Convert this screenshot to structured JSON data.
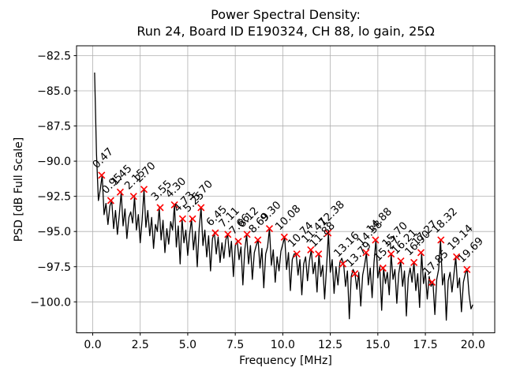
{
  "figure": {
    "background": "#ffffff"
  },
  "chart_data": {
    "type": "line",
    "title_line1": "Power Spectral Density:",
    "title_line2": "Run 24, Board ID E190324, CH 88, lo gain, 25Ω",
    "title": "Power Spectral Density:\nRun 24, Board ID E190324, CH 88, lo gain, 25Ω",
    "xlabel": "Frequency [MHz]",
    "ylabel": "PSD [dB Full Scale]",
    "xlim": [
      -0.85,
      21.15
    ],
    "ylim": [
      -102.2,
      -81.8
    ],
    "grid": true,
    "grid_color": "#b0b0b0",
    "line_color": "#000000",
    "marker_color": "#ff0000",
    "x_ticks": [
      0.0,
      2.5,
      5.0,
      7.5,
      10.0,
      12.5,
      15.0,
      17.5,
      20.0
    ],
    "x_tick_labels": [
      "0.0",
      "2.5",
      "5.0",
      "7.5",
      "10.0",
      "12.5",
      "15.0",
      "17.5",
      "20.0"
    ],
    "y_ticks": [
      -82.5,
      -85.0,
      -87.5,
      -90.0,
      -92.5,
      -95.0,
      -97.5,
      -100.0
    ],
    "y_tick_labels": [
      "−82.5",
      "−85.0",
      "−87.5",
      "−90.0",
      "−92.5",
      "−95.0",
      "−97.5",
      "−100.0"
    ],
    "series": [
      {
        "name": "psd-trace",
        "f_start": 0.1,
        "f_step": 0.1,
        "values": [
          -83.7,
          -89.5,
          -92.8,
          -92.0,
          -91.0,
          -93.8,
          -93.0,
          -94.5,
          -93.2,
          -92.8,
          -94.8,
          -93.5,
          -95.2,
          -93.8,
          -92.2,
          -94.6,
          -93.4,
          -95.5,
          -94.0,
          -93.6,
          -94.4,
          -92.5,
          -94.9,
          -93.8,
          -95.8,
          -94.2,
          -92.0,
          -94.7,
          -93.5,
          -95.3,
          -94.0,
          -96.2,
          -94.5,
          -95.0,
          -93.3,
          -95.6,
          -94.2,
          -96.5,
          -94.8,
          -95.9,
          -94.3,
          -94.9,
          -93.1,
          -96.1,
          -94.6,
          -97.3,
          -94.1,
          -95.8,
          -94.9,
          -96.7,
          -95.2,
          -94.1,
          -96.3,
          -95.0,
          -97.5,
          -94.8,
          -93.3,
          -96.0,
          -94.9,
          -96.8,
          -95.3,
          -97.8,
          -95.5,
          -95.1,
          -96.6,
          -95.4,
          -97.2,
          -95.8,
          -96.9,
          -95.6,
          -95.2,
          -96.8,
          -95.7,
          -98.2,
          -96.0,
          -95.7,
          -97.0,
          -96.1,
          -98.8,
          -96.3,
          -95.2,
          -97.3,
          -96.0,
          -98.4,
          -96.5,
          -96.0,
          -95.6,
          -97.6,
          -96.2,
          -99.0,
          -96.6,
          -96.1,
          -94.8,
          -97.4,
          -96.3,
          -98.6,
          -96.8,
          -97.8,
          -96.4,
          -95.9,
          -95.4,
          -97.7,
          -96.5,
          -99.2,
          -97.0,
          -96.6,
          -96.6,
          -98.1,
          -97.0,
          -99.5,
          -97.3,
          -96.8,
          -98.5,
          -97.1,
          -96.3,
          -98.0,
          -97.2,
          -99.3,
          -96.6,
          -98.2,
          -97.4,
          -99.8,
          -97.6,
          -95.1,
          -97.9,
          -97.0,
          -99.4,
          -97.5,
          -98.8,
          -97.2,
          -96.9,
          -97.3,
          -98.9,
          -97.8,
          -101.2,
          -98.2,
          -97.7,
          -98.0,
          -99.1,
          -97.9,
          -100.3,
          -98.1,
          -97.4,
          -96.5,
          -98.8,
          -97.6,
          -99.7,
          -97.2,
          -95.6,
          -98.3,
          -97.5,
          -100.6,
          -97.6,
          -98.7,
          -97.9,
          -99.5,
          -96.6,
          -98.4,
          -97.7,
          -100.1,
          -98.0,
          -97.1,
          -98.9,
          -97.8,
          -101.0,
          -98.3,
          -97.6,
          -98.6,
          -97.2,
          -99.2,
          -98.0,
          -100.4,
          -96.5,
          -98.7,
          -97.9,
          -99.8,
          -98.2,
          -98.9,
          -98.6,
          -100.9,
          -98.4,
          -97.7,
          -95.6,
          -98.8,
          -98.0,
          -101.3,
          -98.5,
          -97.9,
          -99.3,
          -98.1,
          -96.8,
          -99.0,
          -98.3,
          -100.7,
          -98.6,
          -98.0,
          -97.7,
          -99.5,
          -100.5,
          -100.2
        ]
      }
    ],
    "peak_markers": [
      {
        "f": 0.47,
        "db": -91.0,
        "label": "0.47"
      },
      {
        "f": 0.95,
        "db": -92.8,
        "label": "0.95"
      },
      {
        "f": 1.45,
        "db": -92.2,
        "label": "1.45"
      },
      {
        "f": 2.15,
        "db": -92.5,
        "label": "2.15"
      },
      {
        "f": 2.7,
        "db": -92.0,
        "label": "2.70"
      },
      {
        "f": 3.55,
        "db": -93.3,
        "label": "3.55"
      },
      {
        "f": 4.3,
        "db": -93.1,
        "label": "4.30"
      },
      {
        "f": 4.73,
        "db": -94.1,
        "label": "4.73"
      },
      {
        "f": 5.25,
        "db": -94.1,
        "label": "5.25"
      },
      {
        "f": 5.7,
        "db": -93.3,
        "label": "5.70"
      },
      {
        "f": 6.45,
        "db": -95.1,
        "label": "6.45"
      },
      {
        "f": 7.11,
        "db": -95.2,
        "label": "7.11"
      },
      {
        "f": 7.66,
        "db": -95.7,
        "label": "7.66"
      },
      {
        "f": 8.12,
        "db": -95.2,
        "label": "8.12"
      },
      {
        "f": 8.69,
        "db": -95.6,
        "label": "8.69"
      },
      {
        "f": 9.3,
        "db": -94.8,
        "label": "9.30"
      },
      {
        "f": 10.08,
        "db": -95.4,
        "label": "10.08"
      },
      {
        "f": 10.74,
        "db": -96.6,
        "label": "10.74"
      },
      {
        "f": 11.47,
        "db": -96.3,
        "label": "11.47"
      },
      {
        "f": 11.88,
        "db": -96.6,
        "label": "11.88"
      },
      {
        "f": 12.38,
        "db": -95.1,
        "label": "12.38"
      },
      {
        "f": 13.16,
        "db": -97.3,
        "label": "13.16"
      },
      {
        "f": 13.79,
        "db": -98.0,
        "label": "13.79"
      },
      {
        "f": 14.38,
        "db": -96.5,
        "label": "14.38"
      },
      {
        "f": 14.88,
        "db": -95.6,
        "label": "14.88"
      },
      {
        "f": 15.27,
        "db": -97.6,
        "label": "15.27"
      },
      {
        "f": 15.7,
        "db": -96.6,
        "label": "15.70"
      },
      {
        "f": 16.21,
        "db": -97.1,
        "label": "16.21"
      },
      {
        "f": 16.9,
        "db": -97.2,
        "label": "16.90"
      },
      {
        "f": 17.27,
        "db": -96.5,
        "label": "17.27"
      },
      {
        "f": 17.85,
        "db": -98.6,
        "label": "17.85"
      },
      {
        "f": 18.32,
        "db": -95.6,
        "label": "18.32"
      },
      {
        "f": 19.14,
        "db": -96.8,
        "label": "19.14"
      },
      {
        "f": 19.69,
        "db": -97.7,
        "label": "19.69"
      }
    ]
  }
}
